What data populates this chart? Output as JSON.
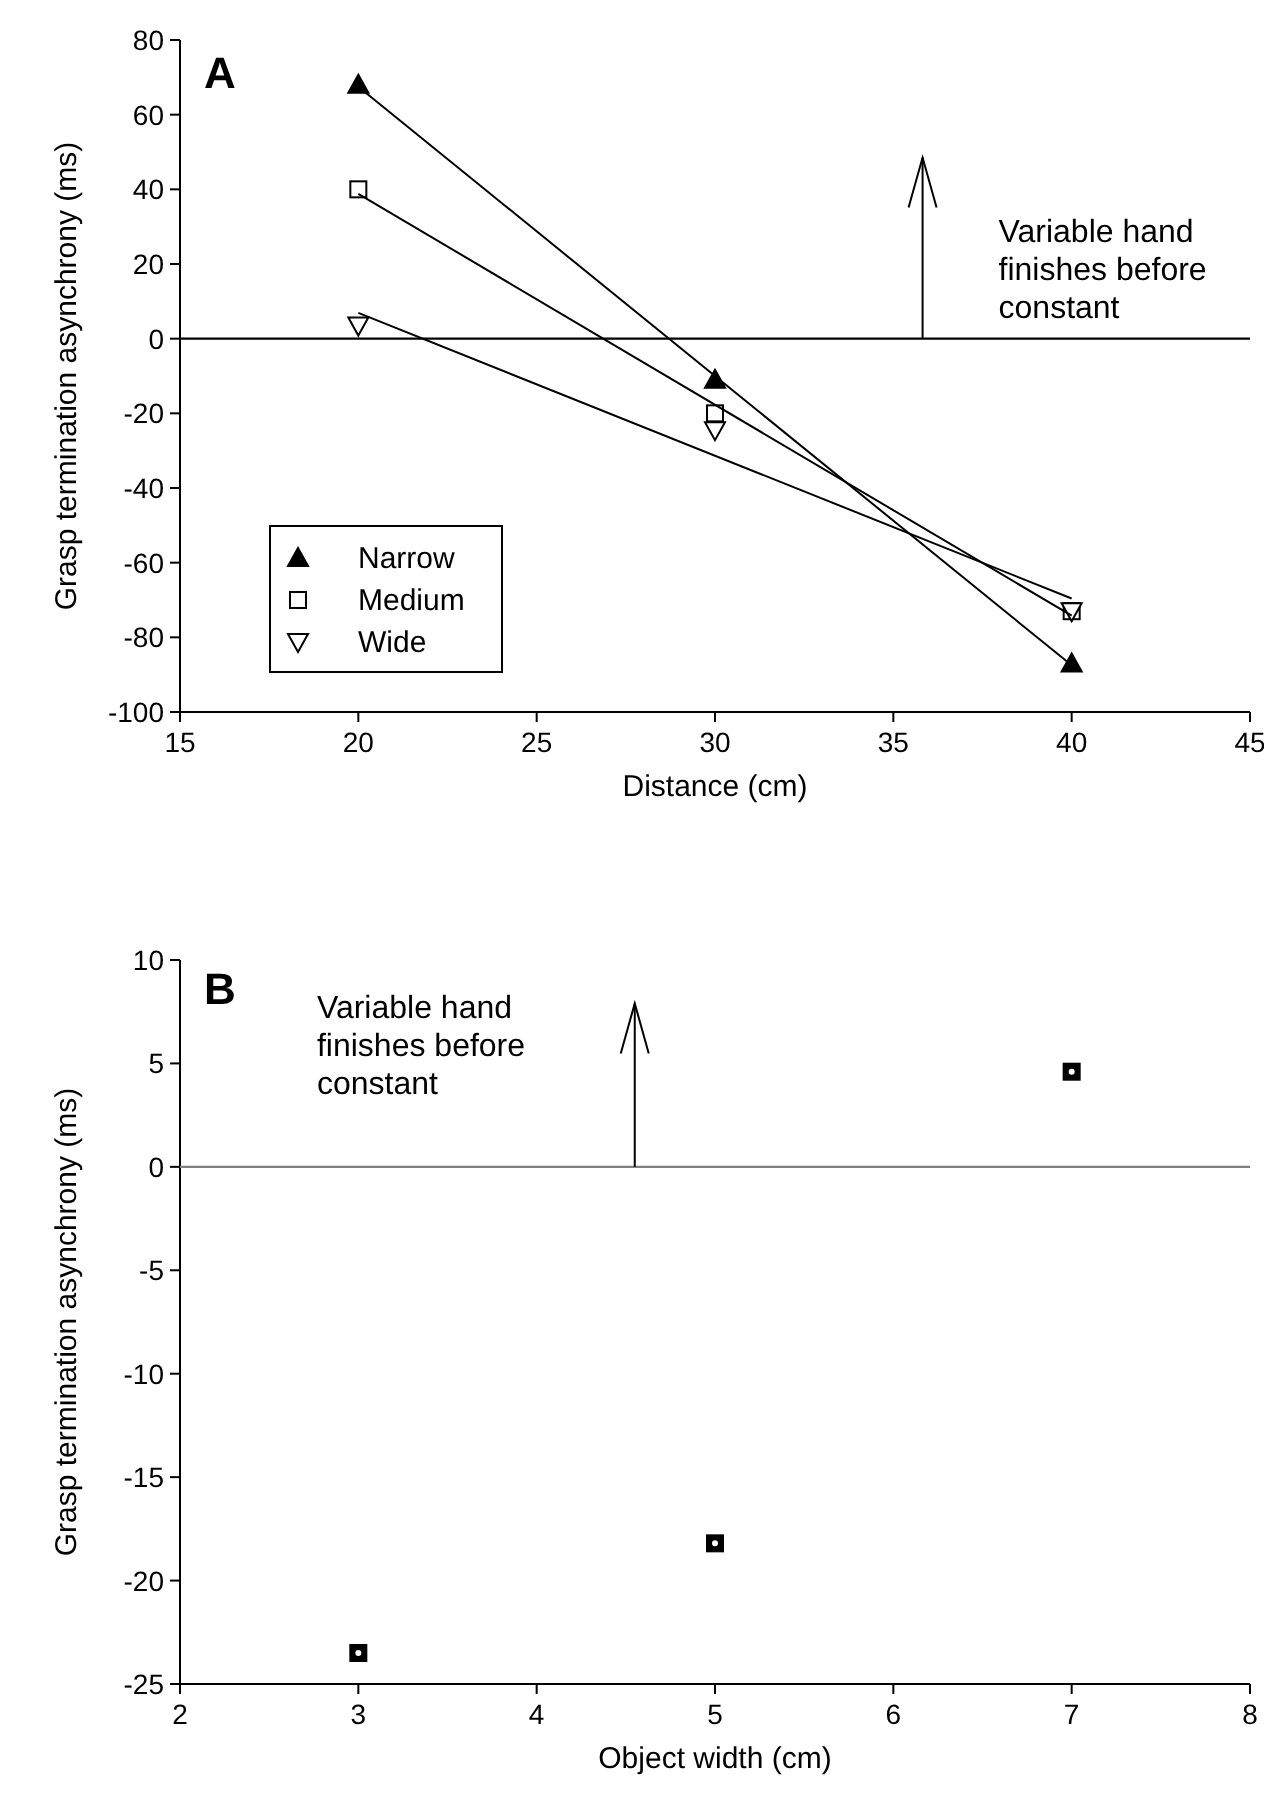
{
  "chart_data": [
    {
      "type": "scatter",
      "title": "A",
      "xlabel": "Distance (cm)",
      "ylabel": "Grasp termination asynchrony (ms)",
      "xlim": [
        15,
        45
      ],
      "ylim": [
        -100,
        80
      ],
      "xticks": [
        15,
        20,
        25,
        30,
        35,
        40,
        45
      ],
      "yticks": [
        -100,
        -80,
        -60,
        -40,
        -20,
        0,
        20,
        40,
        60,
        80
      ],
      "legend": "bottom left",
      "annotations": [
        "Variable hand finishes before constant"
      ],
      "ref_lines": [
        {
          "axis": "y",
          "value": 0,
          "color": "#000000"
        }
      ],
      "series": [
        {
          "name": "Narrow",
          "color": "#000000",
          "marker": "triangle",
          "x": [
            20,
            30,
            40
          ],
          "values": [
            68,
            -11,
            -87
          ]
        },
        {
          "name": "Medium",
          "color": "#000000",
          "marker": "square",
          "x": [
            20,
            30,
            40
          ],
          "values": [
            40,
            -20,
            -73
          ]
        },
        {
          "name": "Wide",
          "color": "#000000",
          "marker": "triangle-down",
          "x": [
            20,
            30,
            40
          ],
          "values": [
            3.5,
            -24.5,
            -73
          ]
        },
        {
          "type": "line",
          "color": "#000000",
          "marker": "none",
          "x": [
            20,
            40
          ],
          "values": [
            67.5,
            -87.5
          ]
        },
        {
          "type": "line",
          "color": "#000000",
          "marker": "none",
          "x": [
            20,
            40
          ],
          "values": [
            38.8,
            -74.2
          ]
        },
        {
          "type": "line",
          "color": "#000000",
          "marker": "none",
          "x": [
            20,
            40
          ],
          "values": [
            6.9,
            -69.6
          ]
        }
      ]
    },
    {
      "type": "scatter",
      "title": "B",
      "xlabel": "Object width (cm)",
      "ylabel": "Grasp termination asynchrony (ms)",
      "xlim": [
        2,
        8
      ],
      "ylim": [
        -25,
        10
      ],
      "xticks": [
        2,
        3,
        4,
        5,
        6,
        7,
        8
      ],
      "yticks": [
        -25,
        -20,
        -15,
        -10,
        -5,
        0,
        5,
        10
      ],
      "annotations": [
        "Variable hand finishes before constant"
      ],
      "ref_lines": [
        {
          "axis": "y",
          "value": 0,
          "color": "#808080"
        }
      ],
      "series": [
        {
          "color": "#000000",
          "marker": "square",
          "x": [
            3,
            5,
            7
          ],
          "values": [
            -23.5,
            -18.2,
            4.6
          ]
        }
      ]
    }
  ]
}
